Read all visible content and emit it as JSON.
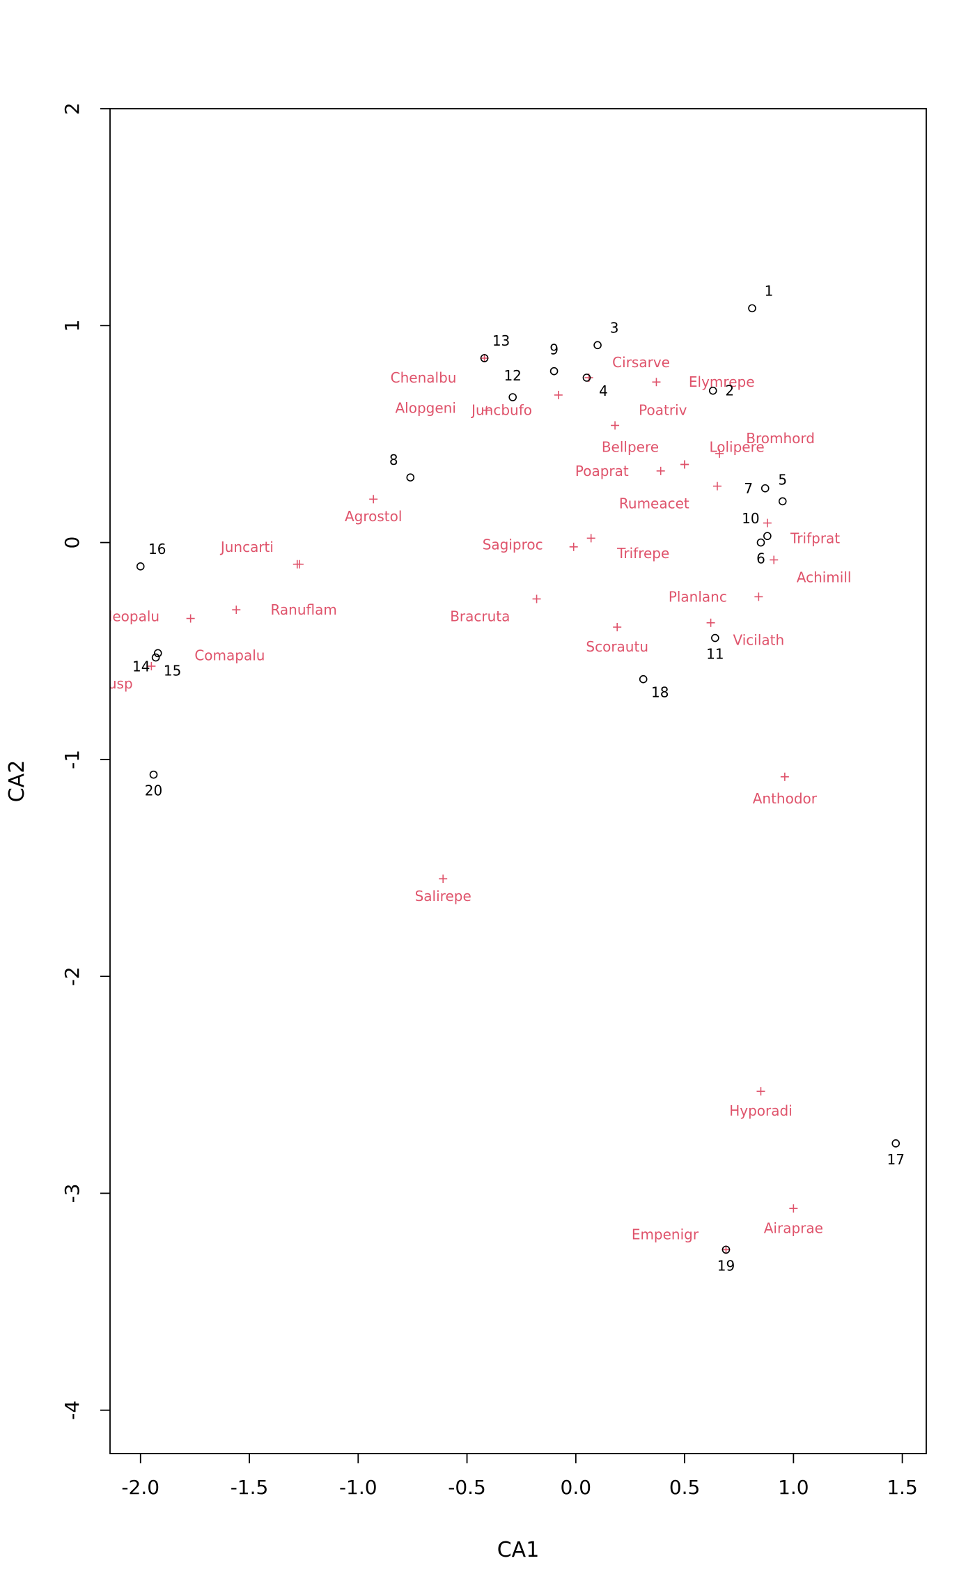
{
  "chart_data": {
    "type": "scatter",
    "title": "",
    "xlabel": "CA1",
    "ylabel": "CA2",
    "xlim": [
      -2.14,
      1.61
    ],
    "ylim": [
      -4.2,
      2.0
    ],
    "xticks": [
      -2.0,
      -1.5,
      -1.0,
      -0.5,
      0.0,
      0.5,
      1.0,
      1.5
    ],
    "xtick_labels": [
      "-2.0",
      "-1.5",
      "-1.0",
      "-0.5",
      "0.0",
      "0.5",
      "1.0",
      "1.5"
    ],
    "yticks": [
      -4,
      -3,
      -2,
      -1,
      0,
      1,
      2
    ],
    "ytick_labels": [
      "-4",
      "-3",
      "-2",
      "-1",
      "0",
      "1",
      "2"
    ],
    "grid": false,
    "colors": {
      "sites": "#000000",
      "species": "#df536b",
      "axes": "#000000"
    },
    "series": [
      {
        "marker": "circle",
        "points": [
          {
            "label": "1",
            "x": 0.81,
            "y": 1.08,
            "pos": "above-right"
          },
          {
            "label": "2",
            "x": 0.63,
            "y": 0.7,
            "pos": "right"
          },
          {
            "label": "3",
            "x": 0.1,
            "y": 0.91,
            "pos": "above-right"
          },
          {
            "label": "4",
            "x": 0.05,
            "y": 0.76,
            "pos": "below-right"
          },
          {
            "label": "5",
            "x": 0.95,
            "y": 0.19,
            "pos": "above"
          },
          {
            "label": "6",
            "x": 0.85,
            "y": 0.0,
            "pos": "below"
          },
          {
            "label": "7",
            "x": 0.87,
            "y": 0.25,
            "pos": "left"
          },
          {
            "label": "8",
            "x": -0.76,
            "y": 0.3,
            "pos": "above-left"
          },
          {
            "label": "9",
            "x": -0.1,
            "y": 0.79,
            "pos": "above"
          },
          {
            "label": "10",
            "x": 0.88,
            "y": 0.03,
            "pos": "above-left"
          },
          {
            "label": "11",
            "x": 0.64,
            "y": -0.44,
            "pos": "below"
          },
          {
            "label": "12",
            "x": -0.29,
            "y": 0.67,
            "pos": "above"
          },
          {
            "label": "13",
            "x": -0.42,
            "y": 0.85,
            "pos": "above-right"
          },
          {
            "label": "14",
            "x": -1.92,
            "y": -0.51,
            "pos": "below-left"
          },
          {
            "label": "15",
            "x": -1.93,
            "y": -0.53,
            "pos": "below-right"
          },
          {
            "label": "16",
            "x": -2.0,
            "y": -0.11,
            "pos": "above-right"
          },
          {
            "label": "17",
            "x": 1.47,
            "y": -2.77,
            "pos": "below"
          },
          {
            "label": "18",
            "x": 0.31,
            "y": -0.63,
            "pos": "below-right"
          },
          {
            "label": "19",
            "x": 0.69,
            "y": -3.26,
            "pos": "below"
          },
          {
            "label": "20",
            "x": -1.94,
            "y": -1.07,
            "pos": "below"
          }
        ]
      },
      {
        "marker": "plus",
        "points": [
          {
            "label": "Achimill",
            "x": 0.91,
            "y": -0.08,
            "lx": 1.14,
            "ly": -0.16
          },
          {
            "label": "Agrostol",
            "x": -0.93,
            "y": 0.2,
            "lx": -0.93,
            "ly": 0.12
          },
          {
            "label": "Airaprae",
            "x": 1.0,
            "y": -3.07,
            "lx": 1.0,
            "ly": -3.16
          },
          {
            "label": "Alopgeni",
            "x": -0.08,
            "y": 0.68,
            "lx": -0.69,
            "ly": 0.62
          },
          {
            "label": "Anthodor",
            "x": 0.96,
            "y": -1.08,
            "lx": 0.96,
            "ly": -1.18
          },
          {
            "label": "Bellpere",
            "x": 0.18,
            "y": 0.54,
            "lx": 0.25,
            "ly": 0.44
          },
          {
            "label": "Bromhord",
            "x": 0.66,
            "y": 0.41,
            "lx": 0.94,
            "ly": 0.48
          },
          {
            "label": "Chenalbu",
            "x": -0.42,
            "y": 0.85,
            "lx": -0.7,
            "ly": 0.76
          },
          {
            "label": "Cirsarve",
            "x": 0.06,
            "y": 0.76,
            "lx": 0.3,
            "ly": 0.83
          },
          {
            "label": "Comapalu",
            "x": -1.77,
            "y": -0.35,
            "lx": -1.59,
            "ly": -0.52
          },
          {
            "label": "Eleopalu",
            "x": -1.56,
            "y": -0.31,
            "lx": -2.05,
            "ly": -0.34
          },
          {
            "label": "Elymrepe",
            "x": 0.37,
            "y": 0.74,
            "lx": 0.67,
            "ly": 0.74
          },
          {
            "label": "Empenigr",
            "x": 0.69,
            "y": -3.26,
            "lx": 0.41,
            "ly": -3.19
          },
          {
            "label": "Hyporadi",
            "x": 0.85,
            "y": -2.53,
            "lx": 0.85,
            "ly": -2.62
          },
          {
            "label": "Juncarti",
            "x": -1.27,
            "y": -0.1,
            "lx": -1.51,
            "ly": -0.02
          },
          {
            "label": "Juncbufo",
            "x": -0.41,
            "y": 0.61,
            "lx": -0.34,
            "ly": 0.61
          },
          {
            "label": "Lolipere",
            "x": 0.5,
            "y": 0.36,
            "lx": 0.74,
            "ly": 0.44
          },
          {
            "label": "Planlanc",
            "x": 0.84,
            "y": -0.25,
            "lx": 0.56,
            "ly": -0.25
          },
          {
            "label": "Poaprat",
            "x": 0.39,
            "y": 0.33,
            "lx": 0.12,
            "ly": 0.33
          },
          {
            "label": "Poatriv",
            "x": 0.5,
            "y": 0.36,
            "lx": 0.4,
            "ly": 0.61
          },
          {
            "label": "Ranuflam",
            "x": -1.28,
            "y": -0.1,
            "lx": -1.25,
            "ly": -0.31
          },
          {
            "label": "Rumeacet",
            "x": 0.65,
            "y": 0.26,
            "lx": 0.36,
            "ly": 0.18
          },
          {
            "label": "Sagiproc",
            "x": -0.01,
            "y": -0.02,
            "lx": -0.29,
            "ly": -0.01
          },
          {
            "label": "Salirepe",
            "x": -0.61,
            "y": -1.55,
            "lx": -0.61,
            "ly": -1.63
          },
          {
            "label": "Scorautu",
            "x": 0.19,
            "y": -0.39,
            "lx": 0.19,
            "ly": -0.48
          },
          {
            "label": "Trifprat",
            "x": 0.88,
            "y": 0.09,
            "lx": 1.1,
            "ly": 0.02
          },
          {
            "label": "Trifrepe",
            "x": 0.07,
            "y": 0.02,
            "lx": 0.31,
            "ly": -0.05
          },
          {
            "label": "Vicilath",
            "x": 0.62,
            "y": -0.37,
            "lx": 0.84,
            "ly": -0.45
          },
          {
            "label": "Callcusp",
            "x": -1.95,
            "y": -0.57,
            "lx": -2.17,
            "ly": -0.65
          },
          {
            "label": "Bracruta",
            "x": -0.18,
            "y": -0.26,
            "lx": -0.44,
            "ly": -0.34
          }
        ]
      }
    ]
  }
}
